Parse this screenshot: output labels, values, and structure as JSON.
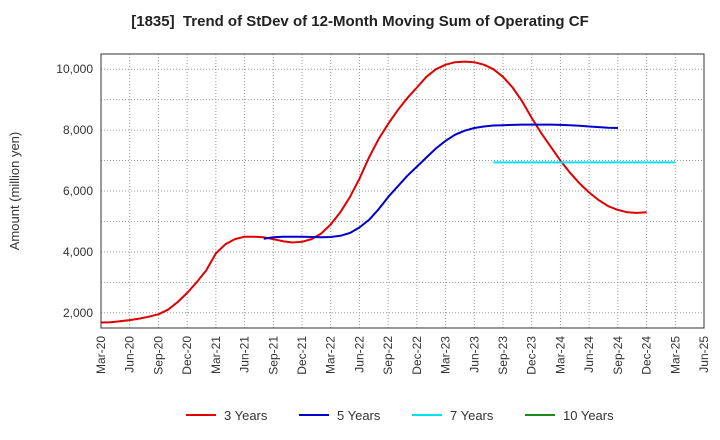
{
  "chart_data": {
    "type": "line",
    "title": "[1835]  Trend of StDev of 12-Month Moving Sum of Operating CF",
    "ylabel": "Amount (million yen)",
    "xlabel": "",
    "ylim": [
      1500,
      10500
    ],
    "yticks": [
      2000,
      4000,
      6000,
      8000,
      10000
    ],
    "ytick_labels": [
      "2,000",
      "4,000",
      "6,000",
      "8,000",
      "10,000"
    ],
    "xticks": [
      "Mar-20",
      "Jun-20",
      "Sep-20",
      "Dec-20",
      "Mar-21",
      "Jun-21",
      "Sep-21",
      "Dec-21",
      "Mar-22",
      "Jun-22",
      "Sep-22",
      "Dec-22",
      "Mar-23",
      "Jun-23",
      "Sep-23",
      "Dec-23",
      "Mar-24",
      "Jun-24",
      "Sep-24",
      "Dec-24",
      "Mar-25",
      "Jun-25"
    ],
    "x_start": "2020-03",
    "grid": true,
    "legend_position": "bottom",
    "series": [
      {
        "name": "3 Years",
        "color": "#e00000",
        "start": "2020-03",
        "values": [
          1680,
          1690,
          1720,
          1760,
          1810,
          1870,
          1950,
          2100,
          2350,
          2650,
          3000,
          3400,
          3950,
          4250,
          4420,
          4500,
          4500,
          4480,
          4420,
          4350,
          4310,
          4330,
          4420,
          4600,
          4900,
          5300,
          5800,
          6400,
          7100,
          7700,
          8200,
          8650,
          9050,
          9400,
          9750,
          10000,
          10150,
          10230,
          10250,
          10230,
          10150,
          10000,
          9750,
          9400,
          8950,
          8400,
          7900,
          7450,
          7000,
          6600,
          6250,
          5950,
          5700,
          5500,
          5380,
          5300,
          5280,
          5300
        ]
      },
      {
        "name": "5 Years",
        "color": "#0000cc",
        "start": "2021-08",
        "values": [
          4430,
          4480,
          4500,
          4500,
          4500,
          4490,
          4480,
          4490,
          4530,
          4620,
          4800,
          5050,
          5400,
          5800,
          6150,
          6500,
          6800,
          7100,
          7400,
          7650,
          7850,
          7980,
          8070,
          8120,
          8150,
          8160,
          8170,
          8180,
          8180,
          8180,
          8180,
          8170,
          8160,
          8140,
          8120,
          8100,
          8080,
          8070
        ]
      },
      {
        "name": "7 Years",
        "color": "#00e5ee",
        "start": "2023-08",
        "values": [
          6940,
          6940,
          6940,
          6940,
          6940,
          6940,
          6940,
          6940,
          6940,
          6940,
          6940,
          6940,
          6940,
          6940,
          6940,
          6940,
          6940,
          6940,
          6940,
          6940
        ]
      },
      {
        "name": "10 Years",
        "color": "#1a8a1a",
        "start": "2025-03",
        "values": []
      }
    ]
  }
}
